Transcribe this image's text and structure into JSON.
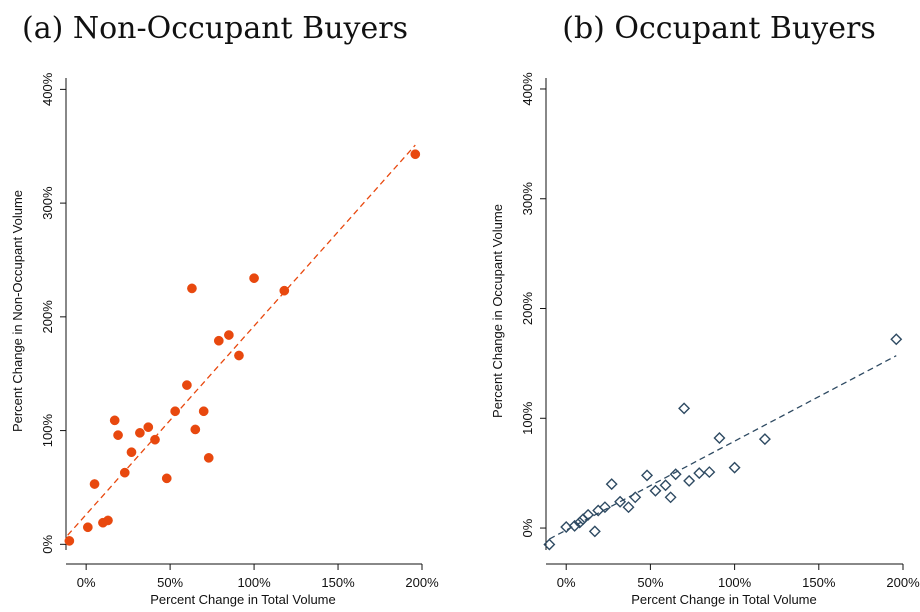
{
  "chart_data": [
    {
      "type": "scatter",
      "title": "(a) Non-Occupant Buyers",
      "xlabel": "Percent Change in Total Volume",
      "ylabel": "Percent Change in Non-Occupant Volume",
      "xlim": [
        -12,
        200
      ],
      "ylim": [
        -5,
        410
      ],
      "xticks": [
        0,
        50,
        100,
        150,
        200
      ],
      "xtick_labels": [
        "0%",
        "50%",
        "100%",
        "150%",
        "200%"
      ],
      "yticks": [
        0,
        100,
        200,
        300,
        400
      ],
      "ytick_labels": [
        "0%",
        "100%",
        "200%",
        "300%",
        "400%"
      ],
      "grid": false,
      "marker": "filled-circle",
      "color": "#e8480e",
      "points": [
        {
          "x": -10,
          "y": 3
        },
        {
          "x": 1,
          "y": 15
        },
        {
          "x": 5,
          "y": 53
        },
        {
          "x": 10,
          "y": 19
        },
        {
          "x": 13,
          "y": 21
        },
        {
          "x": 17,
          "y": 109
        },
        {
          "x": 19,
          "y": 96
        },
        {
          "x": 23,
          "y": 63
        },
        {
          "x": 27,
          "y": 81
        },
        {
          "x": 32,
          "y": 98
        },
        {
          "x": 37,
          "y": 103
        },
        {
          "x": 41,
          "y": 92
        },
        {
          "x": 48,
          "y": 58
        },
        {
          "x": 53,
          "y": 117
        },
        {
          "x": 60,
          "y": 140
        },
        {
          "x": 63,
          "y": 225
        },
        {
          "x": 65,
          "y": 101
        },
        {
          "x": 70,
          "y": 117
        },
        {
          "x": 73,
          "y": 76
        },
        {
          "x": 79,
          "y": 179
        },
        {
          "x": 85,
          "y": 184
        },
        {
          "x": 91,
          "y": 166
        },
        {
          "x": 100,
          "y": 234
        },
        {
          "x": 118,
          "y": 223
        },
        {
          "x": 196,
          "y": 343
        }
      ],
      "fit_line": {
        "style": "dashed",
        "x": [
          -11,
          196
        ],
        "y": [
          8,
          351
        ]
      }
    },
    {
      "type": "scatter",
      "title": "(b) Occupant Buyers",
      "xlabel": "Percent Change in Total Volume",
      "ylabel": "Percent Change in Occupant Volume",
      "xlim": [
        -12,
        200
      ],
      "ylim": [
        -20,
        410
      ],
      "xticks": [
        0,
        50,
        100,
        150,
        200
      ],
      "xtick_labels": [
        "0%",
        "50%",
        "100%",
        "150%",
        "200%"
      ],
      "yticks": [
        0,
        100,
        200,
        300,
        400
      ],
      "ytick_labels": [
        "0%",
        "100%",
        "200%",
        "300%",
        "400%"
      ],
      "grid": false,
      "marker": "hollow-diamond",
      "color": "#2e4a62",
      "points": [
        {
          "x": -10,
          "y": -15
        },
        {
          "x": 0,
          "y": 1
        },
        {
          "x": 5,
          "y": 2
        },
        {
          "x": 8,
          "y": 5
        },
        {
          "x": 10,
          "y": 8
        },
        {
          "x": 13,
          "y": 12
        },
        {
          "x": 17,
          "y": -3
        },
        {
          "x": 19,
          "y": 16
        },
        {
          "x": 23,
          "y": 19
        },
        {
          "x": 27,
          "y": 40
        },
        {
          "x": 32,
          "y": 24
        },
        {
          "x": 37,
          "y": 19
        },
        {
          "x": 41,
          "y": 28
        },
        {
          "x": 48,
          "y": 48
        },
        {
          "x": 53,
          "y": 34
        },
        {
          "x": 59,
          "y": 39
        },
        {
          "x": 62,
          "y": 28
        },
        {
          "x": 65,
          "y": 49
        },
        {
          "x": 70,
          "y": 109
        },
        {
          "x": 73,
          "y": 43
        },
        {
          "x": 79,
          "y": 50
        },
        {
          "x": 85,
          "y": 51
        },
        {
          "x": 91,
          "y": 82
        },
        {
          "x": 100,
          "y": 55
        },
        {
          "x": 118,
          "y": 81
        },
        {
          "x": 196,
          "y": 172
        }
      ],
      "fit_line": {
        "style": "dashed",
        "x": [
          -10,
          196
        ],
        "y": [
          -10,
          157
        ]
      }
    }
  ]
}
